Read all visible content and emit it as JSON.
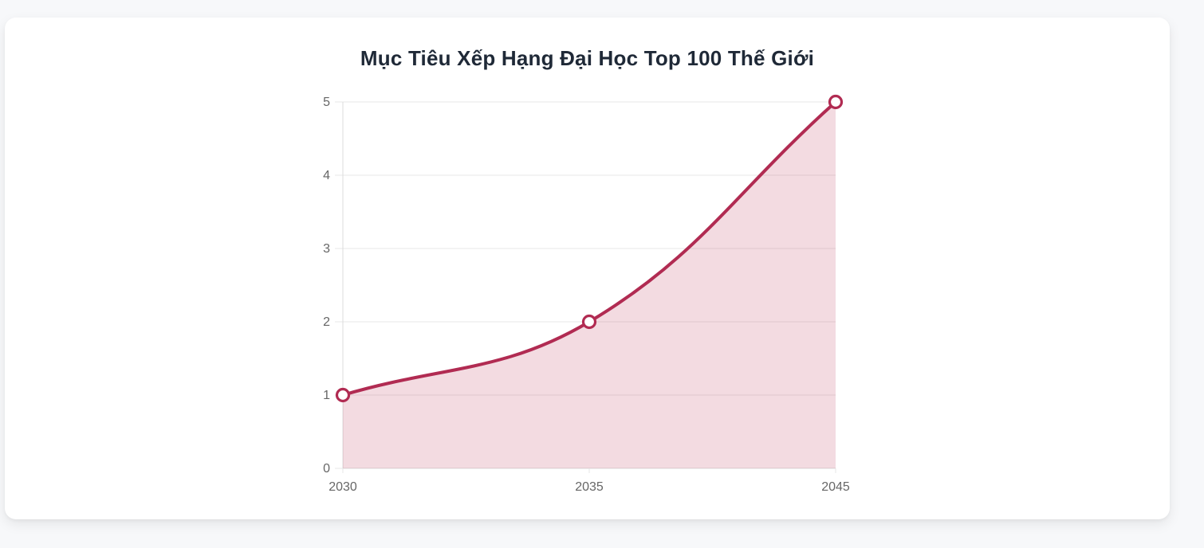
{
  "card": {
    "title": "Mục Tiêu Xếp Hạng Đại Học Top 100 Thế Giới"
  },
  "chart_data": {
    "type": "area",
    "title": "Mục Tiêu Xếp Hạng Đại Học Top 100 Thế Giới",
    "categories": [
      "2030",
      "2035",
      "2045"
    ],
    "values": [
      1,
      2,
      5
    ],
    "xlabel": "",
    "ylabel": "",
    "ylim": [
      0,
      5
    ],
    "yticks": [
      0,
      1,
      2,
      3,
      4,
      5
    ],
    "grid": true,
    "legend": false,
    "curve": "smooth",
    "marker": "open-circle",
    "colors": {
      "line": "#b12b52",
      "fill": "rgba(185,40,75,0.17)",
      "grid": "#e7e7e7",
      "axis": "#dcdcdc",
      "tick_text": "#666666",
      "title_text": "#1f2937",
      "marker_fill": "#ffffff"
    }
  }
}
